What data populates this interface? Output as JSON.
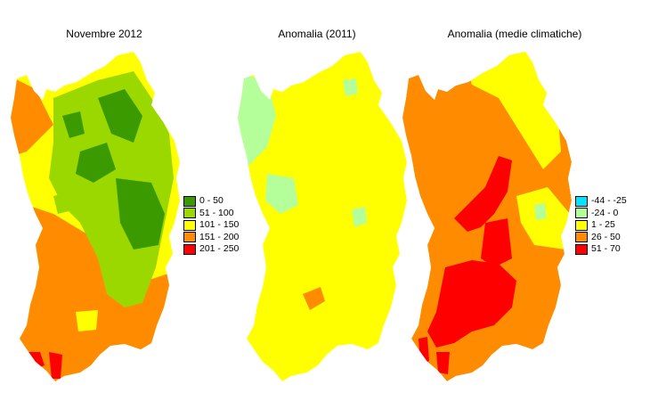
{
  "maps": [
    {
      "title": "Novembre 2012"
    },
    {
      "title": "Anomalia (2011)"
    },
    {
      "title": "Anomalia (medie climatiche)"
    }
  ],
  "legend_rainfall": [
    {
      "label": "0 - 50",
      "color": "#3a9a00"
    },
    {
      "label": "51 - 100",
      "color": "#9bd800"
    },
    {
      "label": "101 - 150",
      "color": "#ffff00"
    },
    {
      "label": "151 - 200",
      "color": "#ff8c00"
    },
    {
      "label": "201 - 250",
      "color": "#ff0000"
    }
  ],
  "legend_anomaly": [
    {
      "label": "-44 - -25",
      "color": "#00e5ff"
    },
    {
      "label": "-24 - 0",
      "color": "#b4ff9a"
    },
    {
      "label": "1 - 25",
      "color": "#ffff00"
    },
    {
      "label": "26 - 50",
      "color": "#ff8c00"
    },
    {
      "label": "51 - 70",
      "color": "#ff0000"
    }
  ]
}
